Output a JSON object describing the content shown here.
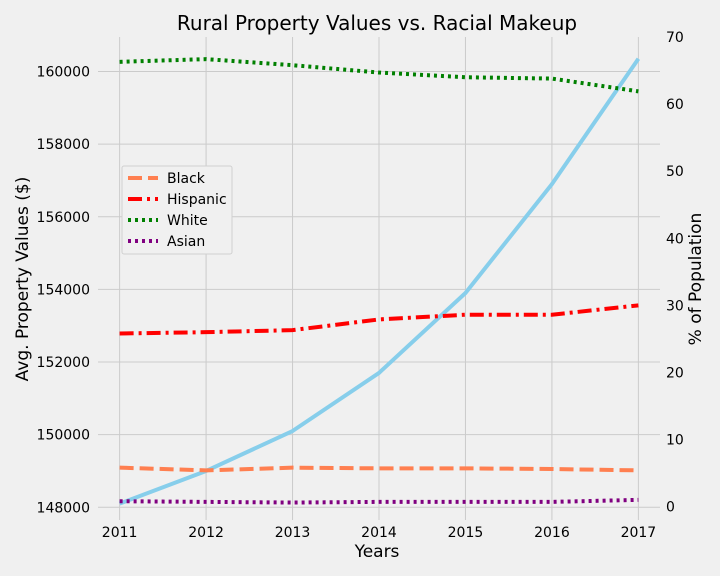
{
  "chart_data": {
    "type": "line",
    "title": "Rural Property Values vs. Racial Makeup",
    "xlabel": "Years",
    "ylabel_left": "Avg. Property Values ($)",
    "ylabel_right": "% of Population",
    "x": [
      2011,
      2012,
      2013,
      2014,
      2015,
      2016,
      2017
    ],
    "x_ticks": [
      "2011",
      "2012",
      "2013",
      "2014",
      "2015",
      "2016",
      "2017"
    ],
    "ylim_left": [
      147650,
      160950
    ],
    "y_ticks_left": [
      148000,
      150000,
      152000,
      154000,
      156000,
      158000,
      160000
    ],
    "ylim_right": [
      -2,
      70
    ],
    "y_ticks_right": [
      0,
      10,
      20,
      30,
      40,
      50,
      60,
      70
    ],
    "grid": true,
    "legend_position": "left",
    "property_series": {
      "name": "Avg. Property Value",
      "axis": "left",
      "color": "#87ceeb",
      "values": [
        148100,
        149000,
        150100,
        151700,
        153900,
        156900,
        160350
      ]
    },
    "series": [
      {
        "name": "Black",
        "axis": "right",
        "color": "#ff7f50",
        "style": "dashed",
        "values": [
          5.8,
          5.4,
          5.8,
          5.7,
          5.7,
          5.6,
          5.4
        ]
      },
      {
        "name": "Hispanic",
        "axis": "right",
        "color": "#ff0000",
        "style": "dashdot",
        "values": [
          25.8,
          26.0,
          26.3,
          27.9,
          28.6,
          28.6,
          30.0
        ]
      },
      {
        "name": "White",
        "axis": "right",
        "color": "#008000",
        "style": "dotted",
        "values": [
          66.3,
          66.7,
          65.8,
          64.7,
          64.0,
          63.8,
          61.9
        ]
      },
      {
        "name": "Asian",
        "axis": "right",
        "color": "#800080",
        "style": "dotted",
        "values": [
          0.8,
          0.7,
          0.6,
          0.7,
          0.7,
          0.7,
          1.0
        ]
      }
    ]
  }
}
